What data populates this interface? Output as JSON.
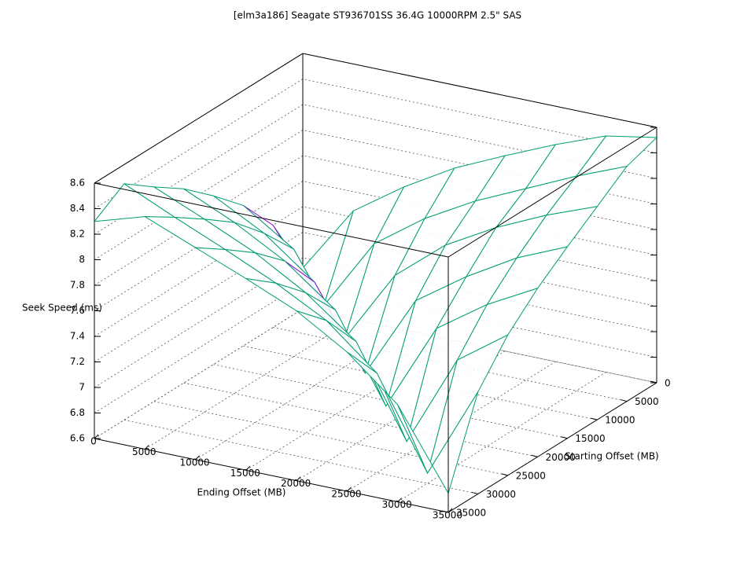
{
  "chart_data": {
    "type": "surface",
    "title": "[elm3a186] Seagate ST936701SS 36.4G 10000RPM 2.5\" SAS",
    "x_label": "Ending Offset (MB)",
    "y_label": "Starting Offset (MB)",
    "z_label": "Seek Speed (ms)",
    "x": [
      0,
      5000,
      10000,
      15000,
      20000,
      25000,
      30000,
      35000
    ],
    "y": [
      0,
      5000,
      10000,
      15000,
      20000,
      25000,
      30000,
      35000
    ],
    "z": [
      [
        6.92,
        7.45,
        7.72,
        7.95,
        8.13,
        8.3,
        8.45,
        8.52
      ],
      [
        7.4,
        6.85,
        7.42,
        7.7,
        7.92,
        8.1,
        8.28,
        8.44
      ],
      [
        7.7,
        7.44,
        6.82,
        7.4,
        7.72,
        7.94,
        8.12,
        8.27
      ],
      [
        7.92,
        7.71,
        7.41,
        6.78,
        7.43,
        7.7,
        7.93,
        8.1
      ],
      [
        8.12,
        7.94,
        7.72,
        7.42,
        6.75,
        7.44,
        7.71,
        7.92
      ],
      [
        8.28,
        8.11,
        7.93,
        7.7,
        7.4,
        6.7,
        7.42,
        7.7
      ],
      [
        8.45,
        8.27,
        8.1,
        7.92,
        7.71,
        7.38,
        6.68,
        7.4
      ],
      [
        8.3,
        8.42,
        8.26,
        8.1,
        7.93,
        7.69,
        7.36,
        6.75
      ]
    ],
    "xlim": [
      0,
      35000
    ],
    "ylim": [
      0,
      35000
    ],
    "zlim": [
      6.6,
      8.6
    ],
    "xticks": [
      0,
      5000,
      10000,
      15000,
      20000,
      25000,
      30000,
      35000
    ],
    "yticks": [
      0,
      5000,
      10000,
      15000,
      20000,
      25000,
      30000,
      35000
    ],
    "zticks": [
      6.6,
      6.8,
      7,
      7.2,
      7.4,
      7.6,
      7.8,
      8,
      8.2,
      8.4,
      8.6
    ],
    "grid": true,
    "color": "#9400d3",
    "underside_color": "#009e73"
  }
}
